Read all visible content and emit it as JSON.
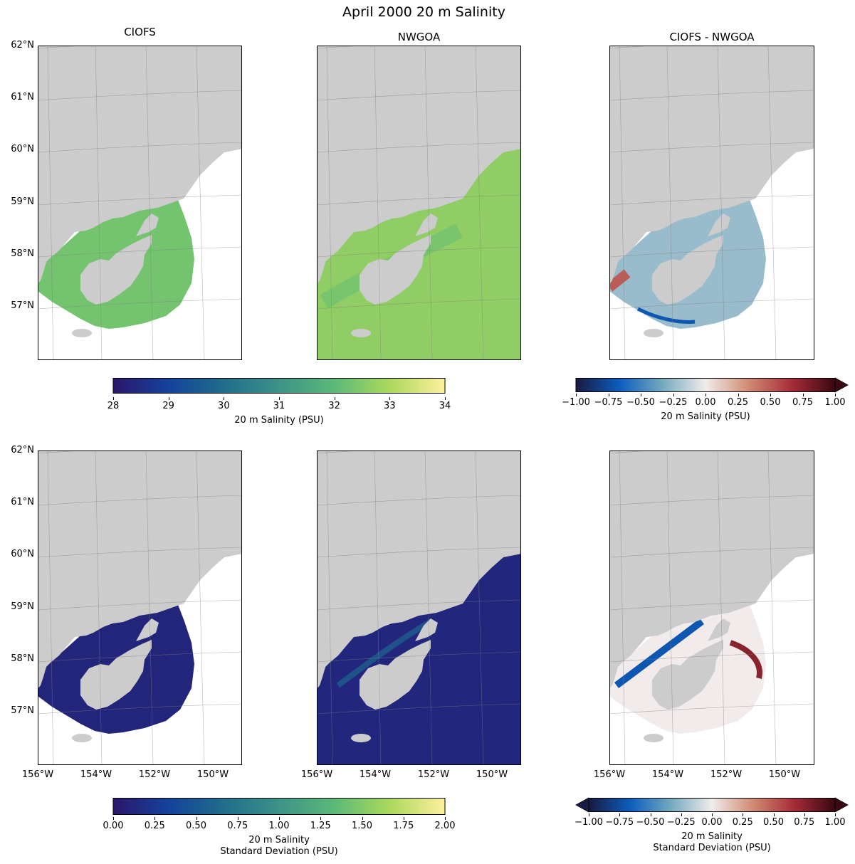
{
  "figure": {
    "title": "April 2000 20 m Salinity"
  },
  "panels": [
    {
      "id": "ciofs_mean",
      "title": "CIOFS",
      "field": "mean",
      "domain": "ciofs",
      "cmap": "haline"
    },
    {
      "id": "nwgoa_mean",
      "title": "NWGOA",
      "field": "mean",
      "domain": "nwgoa",
      "cmap": "haline"
    },
    {
      "id": "diff_mean",
      "title": "CIOFS - NWGOA",
      "field": "mean",
      "domain": "ciofs",
      "cmap": "balance"
    },
    {
      "id": "ciofs_std",
      "title": "",
      "field": "std",
      "domain": "ciofs",
      "cmap": "haline"
    },
    {
      "id": "nwgoa_std",
      "title": "",
      "field": "std",
      "domain": "nwgoa",
      "cmap": "haline"
    },
    {
      "id": "diff_std",
      "title": "",
      "field": "std",
      "domain": "ciofs",
      "cmap": "balance"
    }
  ],
  "map": {
    "lat_labels": [
      "62°N",
      "61°N",
      "60°N",
      "59°N",
      "58°N",
      "57°N"
    ],
    "lon_labels": [
      "156°W",
      "154°W",
      "152°W",
      "150°W"
    ],
    "land_color": "#cccccc",
    "ocean_masked_color": "#ffffff",
    "gridline_color": "#7f7f7f"
  },
  "colorbars": {
    "salinity": {
      "ticks": [
        "28",
        "29",
        "30",
        "31",
        "32",
        "33",
        "34"
      ],
      "label": "20 m Salinity (PSU)",
      "range": [
        28,
        34
      ],
      "cmap": "haline"
    },
    "salinity_diff": {
      "ticks": [
        "−1.00",
        "−0.75",
        "−0.50",
        "−0.25",
        "0.00",
        "0.25",
        "0.50",
        "0.75",
        "1.00"
      ],
      "label": "20 m Salinity (PSU)",
      "range": [
        -1,
        1
      ],
      "extend": "max",
      "cmap": "balance"
    },
    "std": {
      "ticks": [
        "0.00",
        "0.25",
        "0.50",
        "0.75",
        "1.00",
        "1.25",
        "1.50",
        "1.75",
        "2.00"
      ],
      "label_line1": "20 m Salinity",
      "label_line2": "Standard Deviation (PSU)",
      "range": [
        0,
        2
      ],
      "cmap": "haline"
    },
    "std_diff": {
      "ticks": [
        "−1.00",
        "−0.75",
        "−0.50",
        "−0.25",
        "0.00",
        "0.25",
        "0.50",
        "0.75",
        "1.00"
      ],
      "label_line1": "20 m Salinity",
      "label_line2": "Standard Deviation (PSU)",
      "range": [
        -1,
        1
      ],
      "extend": "both",
      "cmap": "balance"
    }
  },
  "colormaps": {
    "haline": [
      "#2a186c",
      "#14439c",
      "#206e8b",
      "#3c9387",
      "#5ab978",
      "#aad85c",
      "#fdef9a"
    ],
    "balance": [
      "#181c43",
      "#0c5ebe",
      "#75aabe",
      "#f1eceb",
      "#d08b73",
      "#a72d39",
      "#3c0912"
    ]
  }
}
